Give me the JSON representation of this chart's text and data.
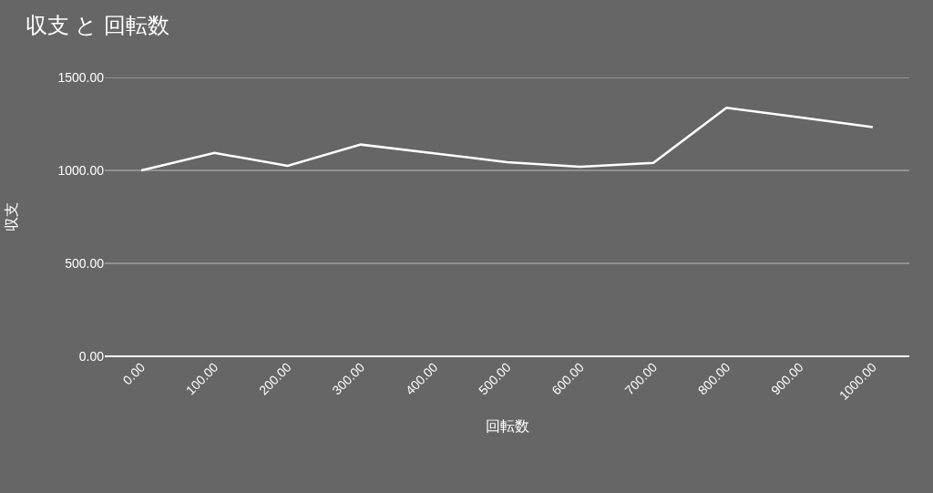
{
  "chart_data": {
    "type": "line",
    "title": "収支 と 回転数",
    "xlabel": "回転数",
    "ylabel": "収支",
    "x": [
      0,
      100,
      200,
      300,
      400,
      500,
      600,
      700,
      800,
      900,
      1000
    ],
    "series": [
      {
        "color": "#ffffff",
        "values": [
          1000,
          1094,
          1025,
          1139,
          1092,
          1044,
          1020,
          1040,
          1337,
          1285,
          1233
        ]
      }
    ],
    "xlim": [
      -50,
      1050
    ],
    "xticks": [
      {
        "value": 0,
        "label": "0.00"
      },
      {
        "value": 100,
        "label": "100.00"
      },
      {
        "value": 200,
        "label": "200.00"
      },
      {
        "value": 300,
        "label": "300.00"
      },
      {
        "value": 400,
        "label": "400.00"
      },
      {
        "value": 500,
        "label": "500.00"
      },
      {
        "value": 600,
        "label": "600.00"
      },
      {
        "value": 700,
        "label": "700.00"
      },
      {
        "value": 800,
        "label": "800.00"
      },
      {
        "value": 900,
        "label": "900.00"
      },
      {
        "value": 1000,
        "label": "1000.00"
      }
    ],
    "ylim": [
      0,
      1500
    ],
    "yticks": [
      {
        "value": 0,
        "label": "0.00"
      },
      {
        "value": 500,
        "label": "500.00"
      },
      {
        "value": 1000,
        "label": "1000.00"
      },
      {
        "value": 1500,
        "label": "1500.00"
      }
    ],
    "grid": "y",
    "marker": "none",
    "line_style": "solid"
  }
}
